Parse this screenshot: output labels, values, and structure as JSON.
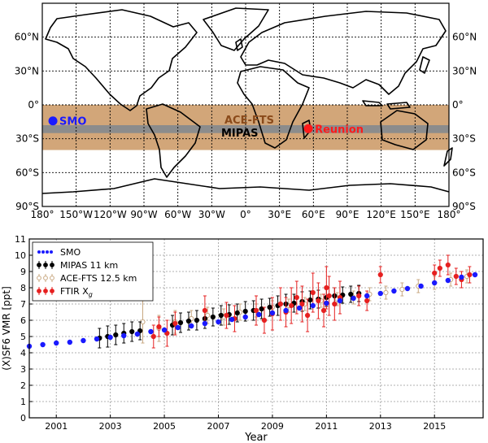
{
  "map_panel": {
    "lat_labels": [
      "60°N",
      "30°N",
      "0°",
      "30°S",
      "60°S",
      "90°S"
    ],
    "lat_values": [
      60,
      30,
      0,
      -30,
      -60,
      -90
    ],
    "lon_labels": [
      "180°",
      "150°W",
      "120°W",
      "90°W",
      "60°W",
      "30°W",
      "0°",
      "30°E",
      "60°E",
      "90°E",
      "120°E",
      "150°E",
      "180°"
    ],
    "lon_values": [
      -180,
      -150,
      -120,
      -90,
      -60,
      -30,
      0,
      30,
      60,
      90,
      120,
      150,
      180
    ],
    "bands": [
      {
        "name": "ACE-FTS",
        "lat_min": -40,
        "lat_max": 0,
        "color": "#d2a679"
      },
      {
        "name": "MIPAS",
        "lat_min": -25,
        "lat_max": -18,
        "color": "#8c8c8c"
      }
    ],
    "band_labels": {
      "ace": "ACE-FTS",
      "mipas": "MIPAS"
    },
    "sites": [
      {
        "name": "SMO",
        "lon": -170.6,
        "lat": -14.2,
        "color": "#1a1aff"
      },
      {
        "name": "Reunion",
        "lon": 55.5,
        "lat": -21.1,
        "color": "#ff1a1a"
      }
    ]
  },
  "chart_data": {
    "type": "scatter",
    "title": "",
    "xlabel": "Year",
    "ylabel": "(X)SF6 VMR [ppt]",
    "xlim": [
      2000.0,
      2016.8
    ],
    "ylim": [
      0,
      11
    ],
    "xticks": [
      "2001",
      "2003",
      "2005",
      "2007",
      "2009",
      "2011",
      "2013",
      "2015"
    ],
    "yticks": [
      "0",
      "1",
      "2",
      "3",
      "4",
      "5",
      "6",
      "7",
      "8",
      "9",
      "10",
      "11"
    ],
    "grid": true,
    "legend_position": "top-left",
    "series": [
      {
        "name": "SMO",
        "color": "#1a1aff",
        "x": [
          2000.0,
          2000.5,
          2001.0,
          2001.5,
          2002.0,
          2002.5,
          2003.0,
          2003.5,
          2004.0,
          2004.5,
          2005.0,
          2005.5,
          2006.0,
          2006.5,
          2007.0,
          2007.5,
          2008.0,
          2008.5,
          2009.0,
          2009.5,
          2010.0,
          2010.5,
          2011.0,
          2011.5,
          2012.0,
          2012.5,
          2013.0,
          2013.5,
          2014.0,
          2014.5,
          2015.0,
          2015.5,
          2016.0,
          2016.5
        ],
        "y": [
          4.4,
          4.5,
          4.6,
          4.65,
          4.75,
          4.85,
          4.95,
          5.05,
          5.15,
          5.3,
          5.4,
          5.55,
          5.65,
          5.8,
          5.9,
          6.05,
          6.2,
          6.35,
          6.45,
          6.6,
          6.75,
          6.9,
          7.05,
          7.2,
          7.35,
          7.5,
          7.65,
          7.8,
          7.95,
          8.1,
          8.3,
          8.45,
          8.65,
          8.8
        ]
      },
      {
        "name": "MIPAS 11 km",
        "color": "#000000",
        "x": [
          2002.6,
          2002.9,
          2003.2,
          2003.5,
          2003.8,
          2004.1,
          2005.3,
          2005.6,
          2005.9,
          2006.2,
          2006.5,
          2006.8,
          2007.1,
          2007.4,
          2007.7,
          2008.0,
          2008.3,
          2008.6,
          2008.9,
          2009.2,
          2009.5,
          2009.8,
          2010.1,
          2010.4,
          2010.7,
          2011.0,
          2011.3,
          2011.6,
          2011.9,
          2012.2
        ],
        "y": [
          4.9,
          5.0,
          5.1,
          5.2,
          5.3,
          5.35,
          5.7,
          5.85,
          5.95,
          6.0,
          6.1,
          6.2,
          6.3,
          6.35,
          6.45,
          6.55,
          6.6,
          6.7,
          6.8,
          6.9,
          7.0,
          7.05,
          7.15,
          7.25,
          7.3,
          7.4,
          7.5,
          7.55,
          7.6,
          7.65
        ],
        "err": [
          0.6,
          0.65,
          0.6,
          0.6,
          0.6,
          0.55,
          0.6,
          0.6,
          0.55,
          0.6,
          0.6,
          0.55,
          0.6,
          0.6,
          0.55,
          0.6,
          0.6,
          0.6,
          0.55,
          0.6,
          0.6,
          0.55,
          0.6,
          0.55,
          0.55,
          0.55,
          0.5,
          0.5,
          0.5,
          0.5
        ]
      },
      {
        "name": "ACE-FTS 12.5 km",
        "color": "#c8a882",
        "x": [
          2004.2,
          2004.8,
          2005.4,
          2006.0,
          2006.6,
          2007.2,
          2007.8,
          2008.4,
          2009.0,
          2009.6,
          2010.2,
          2010.8,
          2011.4,
          2012.0,
          2012.6,
          2013.2,
          2013.8,
          2014.4,
          2015.0,
          2015.6,
          2016.2
        ],
        "y": [
          5.9,
          5.5,
          5.9,
          6.1,
          6.3,
          6.2,
          6.5,
          6.6,
          6.8,
          6.9,
          7.0,
          7.2,
          7.3,
          7.4,
          7.6,
          7.7,
          7.9,
          8.1,
          8.3,
          8.5,
          8.7
        ],
        "err": [
          1.3,
          0.8,
          0.7,
          0.5,
          0.5,
          0.5,
          0.5,
          0.4,
          0.4,
          0.4,
          0.4,
          0.4,
          0.4,
          0.4,
          0.4,
          0.4,
          0.4,
          0.4,
          0.4,
          0.4,
          0.4
        ]
      },
      {
        "name": "FTIR X",
        "subscript": "g",
        "color": "#e62020",
        "x": [
          2004.6,
          2004.8,
          2005.1,
          2005.4,
          2006.5,
          2007.3,
          2007.6,
          2008.4,
          2008.7,
          2009.0,
          2009.3,
          2009.5,
          2009.7,
          2009.9,
          2010.1,
          2010.3,
          2010.5,
          2010.7,
          2010.9,
          2011.0,
          2011.1,
          2011.3,
          2011.5,
          2012.2,
          2012.5,
          2013.0,
          2015.0,
          2015.2,
          2015.5,
          2015.8,
          2016.0,
          2016.3
        ],
        "y": [
          5.0,
          5.6,
          5.2,
          5.8,
          6.6,
          6.3,
          6.1,
          6.6,
          6.0,
          6.4,
          7.0,
          6.5,
          6.9,
          7.4,
          7.0,
          6.3,
          7.7,
          7.2,
          6.6,
          8.0,
          7.5,
          7.0,
          7.4,
          7.5,
          7.2,
          8.8,
          8.9,
          9.2,
          9.4,
          8.7,
          8.5,
          8.8
        ],
        "err": [
          0.7,
          0.6,
          0.8,
          0.7,
          0.9,
          0.8,
          0.8,
          0.9,
          0.8,
          1.0,
          1.0,
          0.9,
          1.1,
          1.0,
          1.1,
          1.0,
          1.2,
          1.1,
          1.0,
          1.3,
          1.2,
          1.0,
          1.0,
          0.6,
          0.6,
          0.5,
          0.5,
          0.5,
          0.6,
          0.5,
          0.5,
          0.5
        ]
      }
    ]
  }
}
